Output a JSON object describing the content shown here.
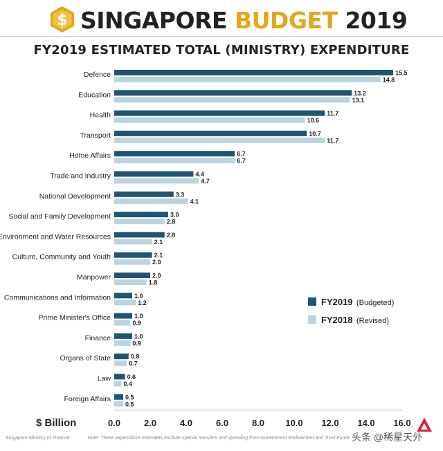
{
  "header": {
    "coin_symbol": "$",
    "title_part1": "SINGAPORE",
    "title_part2": "BUDGET",
    "title_part3": "2019",
    "subtitle": "FY2019 ESTIMATED TOTAL (MINISTRY) EXPENDITURE"
  },
  "colors": {
    "fy2019": "#1f5573",
    "fy2018": "#bcd3e0",
    "accent": "#e0a81c"
  },
  "chart_data": {
    "type": "bar",
    "orientation": "horizontal",
    "title": "FY2019 ESTIMATED TOTAL (MINISTRY) EXPENDITURE",
    "xlabel": "$ Billion",
    "ylabel": "",
    "xlim": [
      0,
      16
    ],
    "xticks": [
      "0.0",
      "2.0",
      "4.0",
      "6.0",
      "8.0",
      "10.0",
      "12.0",
      "14.0",
      "16.0"
    ],
    "grid": false,
    "legend_position": "bottom-right",
    "categories": [
      "Defence",
      "Education",
      "Health",
      "Transport",
      "Home Affairs",
      "Trade and Industry",
      "National Development",
      "Social and Family Development",
      "Environment and Water Resources",
      "Culture, Community and Youth",
      "Manpower",
      "Communications and Information",
      "Prime Minister's Office",
      "Finance",
      "Organs of State",
      "Law",
      "Foreign Affairs"
    ],
    "series": [
      {
        "name": "FY2019",
        "legend_note": "(Budgeted)",
        "color": "#1f5573",
        "values": [
          15.5,
          13.2,
          11.7,
          10.7,
          6.7,
          4.4,
          3.3,
          3.0,
          2.8,
          2.1,
          2.0,
          1.0,
          1.0,
          1.0,
          0.8,
          0.6,
          0.5
        ],
        "labels": [
          "15.5",
          "13.2",
          "11.7",
          "10.7",
          "6.7",
          "4.4",
          "3.3",
          "3.0",
          "2.8",
          "2.1",
          "2.0",
          "1.0",
          "1.0",
          "1.0",
          "0.8",
          "0.6",
          "0.5"
        ]
      },
      {
        "name": "FY2018",
        "legend_note": "(Revised)",
        "color": "#bcd3e0",
        "values": [
          14.8,
          13.1,
          10.6,
          11.7,
          6.7,
          4.7,
          4.1,
          2.8,
          2.1,
          2.0,
          1.8,
          1.2,
          0.9,
          0.9,
          0.7,
          0.4,
          0.5
        ],
        "labels": [
          "14.8",
          "13.1",
          "10.6",
          "11.7",
          "6.7",
          "4.7",
          "4.1",
          "2.8",
          "2.1",
          "2.0",
          "1.8",
          "1.2",
          "0.9",
          "0.9",
          "0.7",
          "0.4",
          "0.5"
        ]
      }
    ]
  },
  "footer": {
    "source": "Singapore Ministry of Finance",
    "note": "Note: These expenditure estimates exclude special transfers and spending from Government Endowment and Trust Funds",
    "watermark": "头条 @稀星天外"
  }
}
